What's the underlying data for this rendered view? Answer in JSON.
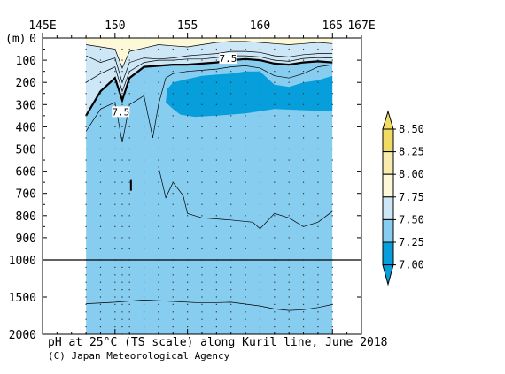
{
  "chart_data": {
    "type": "heatmap",
    "title": "pH at 25°C (TS scale) along Kuril line, June 2018",
    "credit": "(C) Japan Meteorological Agency",
    "ylabel": "(m)",
    "x_ticks": [
      {
        "value": 145,
        "label": "145E"
      },
      {
        "value": 150,
        "label": "150"
      },
      {
        "value": 155,
        "label": "155"
      },
      {
        "value": 160,
        "label": "160"
      },
      {
        "value": 165,
        "label": "165"
      },
      {
        "value": 167,
        "label": "167E"
      }
    ],
    "y_ticks_upper": [
      0,
      100,
      200,
      300,
      400,
      500,
      600,
      700,
      800,
      900,
      1000
    ],
    "y_ticks_lower": [
      1500,
      2000
    ],
    "xlim": [
      145,
      167
    ],
    "ylim_upper": [
      0,
      1000
    ],
    "ylim_lower": [
      1000,
      2000
    ],
    "section_lon_range": [
      148,
      165
    ],
    "station_lons": [
      148,
      149,
      150,
      150.5,
      151,
      152,
      153,
      154,
      155,
      156,
      157,
      158,
      159,
      160,
      161,
      162,
      163,
      164,
      165
    ],
    "colorbar": {
      "levels": [
        "8.50",
        "8.25",
        "8.00",
        "7.75",
        "7.50",
        "7.25",
        "7.00"
      ],
      "colors": [
        "#f0dc62",
        "#f7ecac",
        "#fdf9d8",
        "#cde7f7",
        "#87cdf0",
        "#079fdb"
      ]
    },
    "contour_labels": [
      {
        "text": "7.5",
        "lon": 157.8,
        "depth": 100
      },
      {
        "text": "7.5",
        "lon": 150.4,
        "depth": 340
      }
    ],
    "contours": {
      "c775": [
        [
          148,
          30
        ],
        [
          149,
          40
        ],
        [
          150,
          50
        ],
        [
          150.5,
          135
        ],
        [
          151,
          60
        ],
        [
          152,
          45
        ],
        [
          153,
          30
        ],
        [
          154,
          35
        ],
        [
          155,
          40
        ],
        [
          156,
          30
        ],
        [
          157,
          20
        ],
        [
          158,
          15
        ],
        [
          159,
          15
        ],
        [
          160,
          20
        ],
        [
          161,
          25
        ],
        [
          162,
          30
        ],
        [
          163,
          25
        ],
        [
          164,
          20
        ],
        [
          165,
          25
        ]
      ],
      "c750": [
        [
          148,
          350
        ],
        [
          149,
          240
        ],
        [
          150,
          180
        ],
        [
          150.5,
          280
        ],
        [
          151,
          180
        ],
        [
          152,
          130
        ],
        [
          153,
          125
        ],
        [
          154,
          120
        ],
        [
          155,
          120
        ],
        [
          156,
          115
        ],
        [
          157,
          110
        ],
        [
          158,
          100
        ],
        [
          159,
          95
        ],
        [
          160,
          100
        ],
        [
          161,
          115
        ],
        [
          162,
          120
        ],
        [
          163,
          110
        ],
        [
          164,
          105
        ],
        [
          165,
          110
        ]
      ],
      "c740": [
        [
          148,
          420
        ],
        [
          149,
          320
        ],
        [
          150,
          290
        ],
        [
          150.5,
          470
        ],
        [
          151,
          300
        ],
        [
          152,
          260
        ],
        [
          152.6,
          450
        ],
        [
          153,
          300
        ],
        [
          153.5,
          180
        ],
        [
          154,
          160
        ],
        [
          155,
          150
        ],
        [
          156,
          145
        ],
        [
          157,
          140
        ],
        [
          158,
          130
        ],
        [
          159,
          125
        ],
        [
          160,
          135
        ],
        [
          161,
          170
        ],
        [
          162,
          180
        ],
        [
          163,
          160
        ],
        [
          164,
          130
        ],
        [
          165,
          120
        ]
      ],
      "c710": [
        [
          148,
          1590
        ],
        [
          150,
          1570
        ],
        [
          152,
          1540
        ],
        [
          154,
          1560
        ],
        [
          156,
          1580
        ],
        [
          158,
          1570
        ],
        [
          160,
          1620
        ],
        [
          161,
          1660
        ],
        [
          162,
          1680
        ],
        [
          163,
          1670
        ],
        [
          164,
          1640
        ],
        [
          165,
          1600
        ]
      ],
      "c720": [
        [
          153,
          580
        ],
        [
          153.5,
          720
        ],
        [
          154,
          650
        ],
        [
          154.7,
          710
        ],
        [
          155,
          790
        ],
        [
          156,
          810
        ],
        [
          158,
          820
        ],
        [
          159.5,
          830
        ],
        [
          160,
          860
        ],
        [
          161,
          790
        ],
        [
          162,
          810
        ],
        [
          163,
          850
        ],
        [
          164,
          830
        ],
        [
          165,
          780
        ]
      ]
    }
  }
}
